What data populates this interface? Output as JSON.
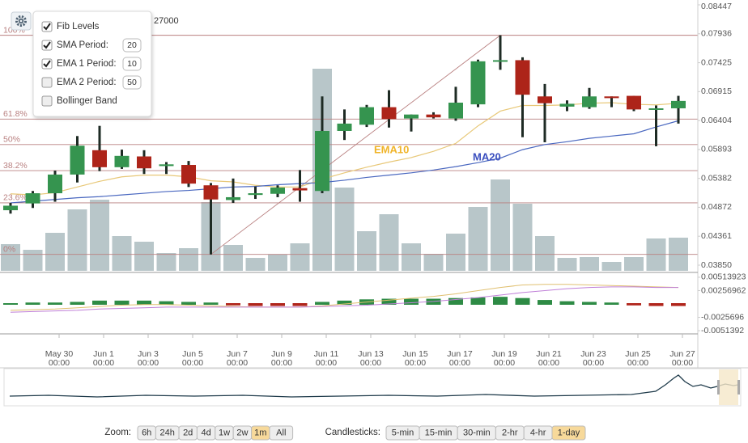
{
  "settings": {
    "items": [
      {
        "label": "Fib Levels",
        "checked": true
      },
      {
        "label": "SMA Period:",
        "checked": true,
        "value": 20
      },
      {
        "label": "EMA 1 Period:",
        "checked": true,
        "value": 10
      },
      {
        "label": "EMA 2 Period:",
        "checked": false,
        "value": 50
      },
      {
        "label": "Bollinger Band",
        "checked": false
      }
    ]
  },
  "chart_data": {
    "type": "candlestick",
    "info_text": "27000",
    "categories": [
      null,
      null,
      "May 30",
      null,
      "Jun 1",
      null,
      "Jun 3",
      null,
      "Jun 5",
      null,
      "Jun 7",
      null,
      "Jun 9",
      null,
      "Jun 11",
      null,
      "Jun 13",
      null,
      "Jun 15",
      null,
      "Jun 17",
      null,
      "Jun 19",
      null,
      "Jun 21",
      null,
      "Jun 23",
      null,
      "Jun 25",
      null,
      "Jun 27"
    ],
    "x_time_label": "00:00",
    "open": [
      0.0482,
      0.0494,
      0.0512,
      0.0545,
      0.0588,
      0.0558,
      0.0577,
      0.056,
      0.0562,
      0.0526,
      0.05,
      0.0509,
      0.0511,
      0.0521,
      0.0516,
      0.0622,
      0.0633,
      0.0664,
      0.0644,
      0.0651,
      0.0644,
      0.0669,
      0.0746,
      0.0747,
      0.0683,
      0.0665,
      0.0664,
      0.0683,
      0.0684,
      0.066,
      0.0662
    ],
    "high": [
      0.0495,
      0.0516,
      0.0552,
      0.0613,
      0.0631,
      0.0589,
      0.0588,
      0.0567,
      0.0569,
      0.053,
      0.0538,
      0.0524,
      0.0526,
      0.0553,
      0.0683,
      0.066,
      0.0668,
      0.0694,
      0.0651,
      0.0655,
      0.07,
      0.0748,
      0.0791,
      0.0752,
      0.0705,
      0.0676,
      0.0698,
      0.0683,
      0.0684,
      0.0667,
      0.0684
    ],
    "low": [
      0.0476,
      0.0486,
      0.0497,
      0.0531,
      0.0551,
      0.0555,
      0.0546,
      0.0546,
      0.0523,
      0.0404,
      0.0495,
      0.0502,
      0.0505,
      0.0497,
      0.0512,
      0.0606,
      0.0629,
      0.0628,
      0.0621,
      0.0644,
      0.064,
      0.0664,
      0.073,
      0.0611,
      0.0602,
      0.0657,
      0.0661,
      0.0664,
      0.0657,
      0.0595,
      0.0635
    ],
    "close": [
      0.049,
      0.0512,
      0.0545,
      0.0596,
      0.0558,
      0.0578,
      0.0556,
      0.0563,
      0.0529,
      0.0501,
      0.0505,
      0.0512,
      0.0522,
      0.0517,
      0.0622,
      0.0635,
      0.0664,
      0.0643,
      0.0651,
      0.0646,
      0.0672,
      0.0745,
      0.0747,
      0.0686,
      0.0671,
      0.067,
      0.0683,
      0.068,
      0.066,
      0.0662,
      0.0675
    ],
    "colors": {
      "up": "#35944f",
      "down": "#ad2419",
      "wick": "#1e2b24"
    },
    "ylim": [
      0.0385,
      0.08447
    ],
    "yticks": [
      {
        "value": 0.0385,
        "label": "0.03850"
      },
      0.04361,
      0.04872,
      0.05382,
      0.05893,
      0.06404,
      0.06915,
      0.07425,
      0.07936,
      0.08447
    ],
    "volume": {
      "color": "#b8c6c9",
      "values": [
        33,
        26,
        47,
        76,
        88,
        43,
        36,
        22,
        28,
        85,
        32,
        16,
        20,
        34,
        250,
        103,
        49,
        70,
        34,
        21,
        46,
        79,
        113,
        83,
        43,
        16,
        17,
        11,
        17,
        40,
        41
      ]
    },
    "series": [
      {
        "name": "EMA10",
        "color": "#e8c878",
        "label_color": "#f0b429",
        "values": [
          0.0511,
          0.0509,
          0.0513,
          0.0523,
          0.0533,
          0.0541,
          0.0544,
          0.0544,
          0.0541,
          0.0534,
          0.0532,
          0.0526,
          0.0523,
          0.0523,
          0.0537,
          0.0548,
          0.0558,
          0.0567,
          0.0575,
          0.0586,
          0.06,
          0.0631,
          0.0657,
          0.0667,
          0.0667,
          0.0668,
          0.0671,
          0.0672,
          0.0669,
          0.0668,
          0.0671
        ]
      },
      {
        "name": "MA20",
        "color": "#4a68c0",
        "label_color": "#3b4fbf",
        "values": [
          0.0495,
          0.0498,
          0.0501,
          0.0504,
          0.0506,
          0.0509,
          0.0512,
          0.0515,
          0.0517,
          0.052,
          0.0523,
          0.0524,
          0.0527,
          0.0529,
          0.0531,
          0.0535,
          0.054,
          0.0544,
          0.0548,
          0.0553,
          0.0559,
          0.0566,
          0.0574,
          0.0589,
          0.0598,
          0.0603,
          0.0609,
          0.0613,
          0.0617,
          0.0629,
          0.064
        ]
      }
    ],
    "fib_levels": [
      {
        "label": "100%",
        "value": 0.0791
      },
      {
        "label": "61.8%",
        "value": 0.0643
      },
      {
        "label": "50%",
        "value": 0.0598
      },
      {
        "label": "38.2%",
        "value": 0.0552
      },
      {
        "label": "23.6%",
        "value": 0.0495
      },
      {
        "label": "0%",
        "value": 0.0404
      }
    ],
    "fib_color": "#b98080",
    "macd": {
      "ylim": [
        -0.0056,
        0.0056
      ],
      "yticks": [
        -0.0051392,
        -0.0025696,
        0.00256962,
        0.00513923
      ],
      "colors": {
        "up": "#2e8b45",
        "down": "#b0251b",
        "line": "#e0c070",
        "signal": "#c080d8"
      },
      "histogram": [
        0,
        0.00012,
        0.00012,
        0.00024,
        0.00049,
        0.00049,
        0.00049,
        0.00037,
        0.00024,
        0.00012,
        -0.00012,
        -0.00024,
        -0.00024,
        -0.00024,
        0.00024,
        0.00049,
        0.00073,
        0.00085,
        0.00085,
        0.00085,
        0.00098,
        0.0011,
        0.00122,
        0.00098,
        0.00061,
        0.00037,
        0.00024,
        0.00012,
        -0.00012,
        -0.00024,
        -0.00024
      ],
      "line": [
        -0.00122,
        -0.0011,
        -0.00098,
        -0.00073,
        -0.00049,
        -0.00024,
        -0.00012,
        -0.00012,
        -0.00024,
        -0.00037,
        -0.00049,
        -0.00061,
        -0.00061,
        -0.00061,
        -0.00037,
        0,
        0.00037,
        0.00073,
        0.0011,
        0.00146,
        0.00195,
        0.00256,
        0.00317,
        0.00366,
        0.00378,
        0.00378,
        0.00366,
        0.00354,
        0.00342,
        0.00329,
        0.00317
      ],
      "signal": [
        -0.00159,
        -0.00146,
        -0.00134,
        -0.00122,
        -0.00098,
        -0.00085,
        -0.00073,
        -0.00061,
        -0.00061,
        -0.00061,
        -0.00061,
        -0.00061,
        -0.00061,
        -0.00061,
        -0.00049,
        -0.00037,
        -0.00024,
        0,
        0.00024,
        0.00049,
        0.00085,
        0.00122,
        0.00171,
        0.0022,
        0.00256,
        0.00293,
        0.00317,
        0.00329,
        0.00329,
        0.00317,
        0.00317
      ]
    }
  },
  "controls": {
    "zoom_label": "Zoom:",
    "zoom": [
      "6h",
      "24h",
      "2d",
      "4d",
      "1w",
      "2w",
      "1m",
      "All"
    ],
    "zoom_active": 6,
    "candle_label": "Candlesticks:",
    "candles": [
      "5-min",
      "15-min",
      "30-min",
      "2-hr",
      "4-hr",
      "1-day"
    ],
    "candle_active": 5
  }
}
